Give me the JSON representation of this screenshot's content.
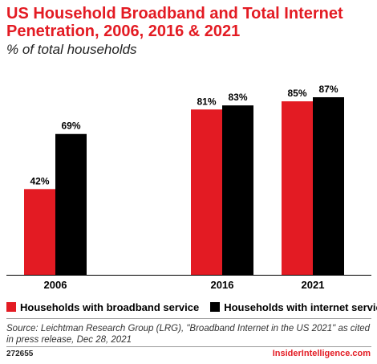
{
  "title": "US Household Broadband and Total Internet Penetration, 2006, 2016 & 2021",
  "subtitle": "% of total households",
  "colors": {
    "broadband": "#e31b23",
    "internet": "#000000",
    "accent": "#e31b23"
  },
  "chart_data": {
    "type": "bar",
    "categories": [
      "2006",
      "2016",
      "2021"
    ],
    "series": [
      {
        "name": "Households with broadband service",
        "values": [
          42,
          81,
          85
        ],
        "labels": [
          "42%",
          "81%",
          "85%"
        ]
      },
      {
        "name": "Households with internet service",
        "values": [
          69,
          83,
          87
        ],
        "labels": [
          "69%",
          "83%",
          "87%"
        ]
      }
    ],
    "ylim": [
      0,
      100
    ],
    "grid": false,
    "legend_position": "bottom-left"
  },
  "legend": [
    {
      "label": "Households with broadband service",
      "color": "#e31b23"
    },
    {
      "label": "Households with internet service",
      "color": "#000000"
    }
  ],
  "source": "Source: Leichtman Research Group (LRG), \"Broadband Internet in the US 2021\" as cited in press release, Dec 28, 2021",
  "footer": {
    "id": "272655",
    "brand": "InsiderIntelligence.com"
  }
}
